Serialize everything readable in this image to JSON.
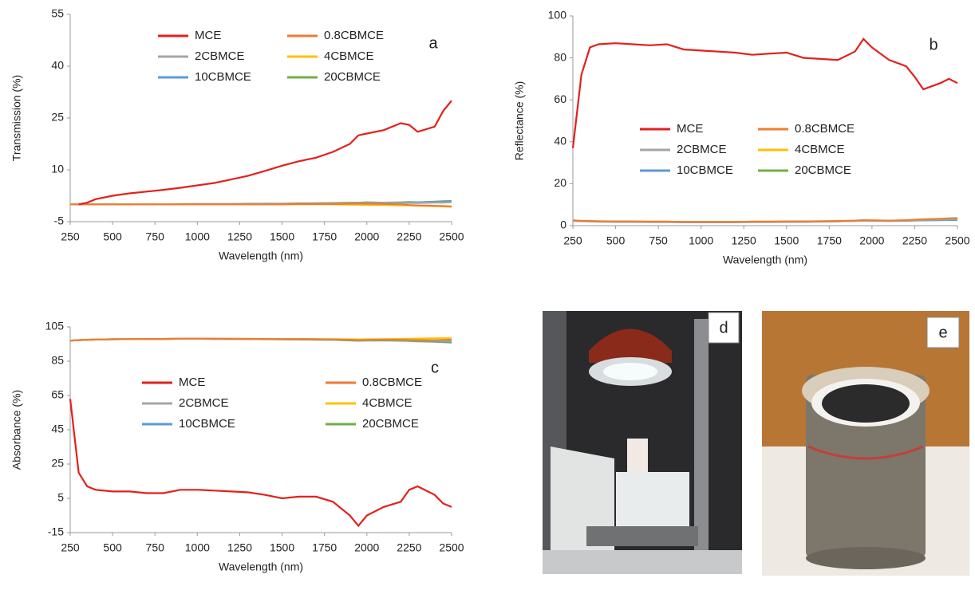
{
  "chart_data": [
    {
      "type": "line",
      "panel": "a",
      "xlabel": "Wavelength (nm)",
      "ylabel": "Transmission (%)",
      "x": [
        250,
        300,
        350,
        400,
        500,
        600,
        700,
        800,
        900,
        1000,
        1100,
        1200,
        1300,
        1400,
        1500,
        1600,
        1700,
        1800,
        1900,
        1950,
        2000,
        2100,
        2200,
        2250,
        2300,
        2400,
        2450,
        2500
      ],
      "xlim": [
        250,
        2500
      ],
      "xticks": [
        250,
        500,
        750,
        1000,
        1250,
        1500,
        1750,
        2000,
        2250,
        2500
      ],
      "ylim": [
        -5,
        55
      ],
      "yticks": [
        -5,
        10,
        25,
        40,
        55
      ],
      "series": [
        {
          "name": "MCE",
          "color": "#e3201c",
          "values": [
            null,
            0,
            0.5,
            1.5,
            2.5,
            3.2,
            3.7,
            4.2,
            4.8,
            5.5,
            6.2,
            7.2,
            8.3,
            9.7,
            11.2,
            12.5,
            13.5,
            15.2,
            17.5,
            20,
            20.5,
            21.5,
            23.5,
            23,
            21,
            22.5,
            27,
            30
          ]
        },
        {
          "name": "0.8CBMCE",
          "color": "#ed7d31",
          "values": [
            0,
            0,
            0,
            0,
            0,
            0,
            0,
            0,
            0,
            0,
            0,
            0,
            0,
            0,
            0,
            0.1,
            0.1,
            0.1,
            0.2,
            0.2,
            0.2,
            0.1,
            0,
            -0.2,
            -0.3,
            -0.4,
            -0.5,
            -0.6
          ]
        },
        {
          "name": "2CBMCE",
          "color": "#a5a5a5",
          "values": [
            0,
            0,
            0,
            0,
            0,
            0,
            0,
            0,
            0,
            0.1,
            0.1,
            0.1,
            0.1,
            0.1,
            0.2,
            0.2,
            0.2,
            0.3,
            0.3,
            0.3,
            0.4,
            0.4,
            0.4,
            0.4,
            0.4,
            0.5,
            0.5,
            0.6
          ]
        },
        {
          "name": "4CBMCE",
          "color": "#ffc000",
          "values": [
            0,
            0,
            0,
            0,
            0,
            0,
            0,
            0,
            0,
            0,
            0,
            0,
            0,
            0,
            0,
            0,
            0,
            0,
            -0.1,
            -0.1,
            -0.2,
            -0.2,
            -0.3,
            -0.3,
            -0.4,
            -0.5,
            -0.6,
            -0.7
          ]
        },
        {
          "name": "10CBMCE",
          "color": "#5b9bd5",
          "values": [
            0,
            0,
            0,
            0,
            0,
            0,
            0,
            0,
            0,
            0.1,
            0.1,
            0.1,
            0.1,
            0.2,
            0.2,
            0.2,
            0.3,
            0.3,
            0.4,
            0.4,
            0.5,
            0.5,
            0.5,
            0.6,
            0.6,
            0.7,
            0.8,
            0.8
          ]
        },
        {
          "name": "20CBMCE",
          "color": "#70ad47",
          "values": [
            0,
            0,
            0,
            0,
            0,
            0,
            0,
            0,
            0.1,
            0.1,
            0.1,
            0.1,
            0.2,
            0.2,
            0.2,
            0.3,
            0.3,
            0.4,
            0.5,
            0.5,
            0.6,
            0.5,
            0.6,
            0.7,
            0.6,
            0.8,
            0.9,
            1.0
          ]
        }
      ]
    },
    {
      "type": "line",
      "panel": "b",
      "xlabel": "Wavelength (nm)",
      "ylabel": "Reflectance (%)",
      "x": [
        250,
        300,
        350,
        400,
        500,
        600,
        700,
        800,
        900,
        1000,
        1100,
        1200,
        1300,
        1400,
        1500,
        1600,
        1700,
        1800,
        1900,
        1950,
        2000,
        2100,
        2200,
        2250,
        2300,
        2400,
        2450,
        2500
      ],
      "xlim": [
        250,
        2500
      ],
      "xticks": [
        250,
        500,
        750,
        1000,
        1250,
        1500,
        1750,
        2000,
        2250,
        2500
      ],
      "ylim": [
        0,
        100
      ],
      "yticks": [
        0,
        20,
        40,
        60,
        80,
        100
      ],
      "series": [
        {
          "name": "MCE",
          "color": "#e3201c",
          "values": [
            37,
            72,
            85,
            86.5,
            87,
            86.5,
            86,
            86.5,
            84,
            83.5,
            83,
            82.5,
            81.5,
            82,
            82.5,
            80,
            79.5,
            79,
            83,
            89,
            85,
            79,
            76,
            71,
            65,
            68,
            70,
            68
          ]
        },
        {
          "name": "0.8CBMCE",
          "color": "#ed7d31",
          "values": [
            2.5,
            2.3,
            2.2,
            2.1,
            2,
            2,
            1.9,
            1.9,
            1.8,
            1.8,
            1.8,
            1.8,
            1.9,
            1.9,
            2,
            2,
            2.1,
            2.2,
            2.4,
            2.6,
            2.5,
            2.4,
            2.6,
            2.8,
            3,
            3.3,
            3.5,
            3.6
          ]
        },
        {
          "name": "2CBMCE",
          "color": "#a5a5a5",
          "values": [
            2.4,
            2.2,
            2.1,
            2,
            1.9,
            1.9,
            1.8,
            1.8,
            1.7,
            1.7,
            1.7,
            1.7,
            1.8,
            1.8,
            1.9,
            1.9,
            2,
            2.1,
            2.3,
            2.5,
            2.4,
            2.3,
            2.5,
            2.6,
            2.8,
            3,
            3.1,
            3.2
          ]
        },
        {
          "name": "4CBMCE",
          "color": "#ffc000",
          "values": [
            2.5,
            2.3,
            2.2,
            2.1,
            2,
            2,
            1.9,
            1.9,
            1.8,
            1.8,
            1.8,
            1.8,
            1.9,
            1.9,
            2,
            2,
            2.1,
            2.2,
            2.4,
            2.6,
            2.5,
            2.4,
            2.6,
            2.8,
            3,
            3.2,
            3.4,
            3.5
          ]
        },
        {
          "name": "10CBMCE",
          "color": "#5b9bd5",
          "values": [
            2.3,
            2.1,
            2,
            1.9,
            1.8,
            1.8,
            1.7,
            1.7,
            1.6,
            1.6,
            1.6,
            1.6,
            1.7,
            1.7,
            1.8,
            1.8,
            1.9,
            2,
            2.2,
            2.4,
            2.3,
            2.2,
            2.3,
            2.4,
            2.5,
            2.6,
            2.7,
            2.7
          ]
        },
        {
          "name": "20CBMCE",
          "color": "#70ad47",
          "values": [
            2.4,
            2.2,
            2.1,
            2,
            1.9,
            1.9,
            1.8,
            1.8,
            1.7,
            1.7,
            1.7,
            1.7,
            1.8,
            1.8,
            1.9,
            1.9,
            2,
            2.1,
            2.3,
            2.5,
            2.4,
            2.3,
            2.4,
            2.5,
            2.6,
            2.7,
            2.8,
            2.8
          ]
        }
      ]
    },
    {
      "type": "line",
      "panel": "c",
      "xlabel": "Wavelength (nm)",
      "ylabel": "Absorbance (%)",
      "x": [
        250,
        300,
        350,
        400,
        500,
        600,
        700,
        800,
        900,
        1000,
        1100,
        1200,
        1300,
        1400,
        1500,
        1600,
        1700,
        1800,
        1900,
        1950,
        2000,
        2100,
        2200,
        2250,
        2300,
        2400,
        2450,
        2500
      ],
      "xlim": [
        250,
        2500
      ],
      "xticks": [
        250,
        500,
        750,
        1000,
        1250,
        1500,
        1750,
        2000,
        2250,
        2500
      ],
      "ylim": [
        -15,
        105
      ],
      "yticks": [
        -15,
        5,
        25,
        45,
        65,
        85,
        105
      ],
      "series": [
        {
          "name": "MCE",
          "color": "#e3201c",
          "values": [
            63,
            20,
            12,
            10,
            9,
            9,
            8,
            8,
            10,
            10,
            9.5,
            9,
            8.5,
            7,
            5,
            6,
            6,
            3,
            -5,
            -11,
            -5,
            0,
            3,
            10,
            12,
            7,
            2,
            0
          ]
        },
        {
          "name": "0.8CBMCE",
          "color": "#ed7d31",
          "values": [
            97,
            97.3,
            97.5,
            97.6,
            97.8,
            97.9,
            98,
            98,
            98.1,
            98.1,
            98.1,
            98.1,
            98,
            98,
            97.9,
            97.9,
            97.8,
            97.7,
            97.5,
            97.3,
            97.4,
            97.6,
            97.5,
            97.4,
            97.3,
            97.2,
            97.4,
            97.5
          ]
        },
        {
          "name": "2CBMCE",
          "color": "#a5a5a5",
          "values": [
            97,
            97.3,
            97.5,
            97.6,
            97.8,
            97.9,
            98,
            98,
            98.1,
            98.1,
            98.1,
            98,
            98,
            97.9,
            97.9,
            97.8,
            97.8,
            97.6,
            97.4,
            97.2,
            97.3,
            97.4,
            97.3,
            97.2,
            97.1,
            97,
            96.9,
            96.8
          ]
        },
        {
          "name": "4CBMCE",
          "color": "#ffc000",
          "values": [
            97,
            97.3,
            97.5,
            97.6,
            97.8,
            97.9,
            98,
            98,
            98.1,
            98.1,
            98.1,
            98.1,
            98.1,
            98,
            98,
            98,
            97.9,
            97.9,
            97.8,
            97.7,
            97.8,
            97.9,
            98,
            98.1,
            98.2,
            98.3,
            98.4,
            98.4
          ]
        },
        {
          "name": "10CBMCE",
          "color": "#5b9bd5",
          "values": [
            97,
            97.3,
            97.5,
            97.6,
            97.8,
            97.9,
            98,
            98,
            98.1,
            98.1,
            98,
            98,
            97.9,
            97.9,
            97.8,
            97.7,
            97.6,
            97.5,
            97.3,
            97.1,
            97.2,
            97.3,
            97.1,
            97,
            96.9,
            96.6,
            96.4,
            96.3
          ]
        },
        {
          "name": "20CBMCE",
          "color": "#70ad47",
          "values": [
            97,
            97.3,
            97.5,
            97.6,
            97.8,
            97.9,
            98,
            98,
            98.1,
            98.1,
            98,
            98,
            97.9,
            97.8,
            97.7,
            97.6,
            97.5,
            97.4,
            97.1,
            96.9,
            97,
            97.1,
            96.9,
            96.8,
            96.6,
            96.3,
            96.1,
            95.9
          ]
        }
      ]
    }
  ],
  "photo_labels": [
    "d",
    "e"
  ]
}
